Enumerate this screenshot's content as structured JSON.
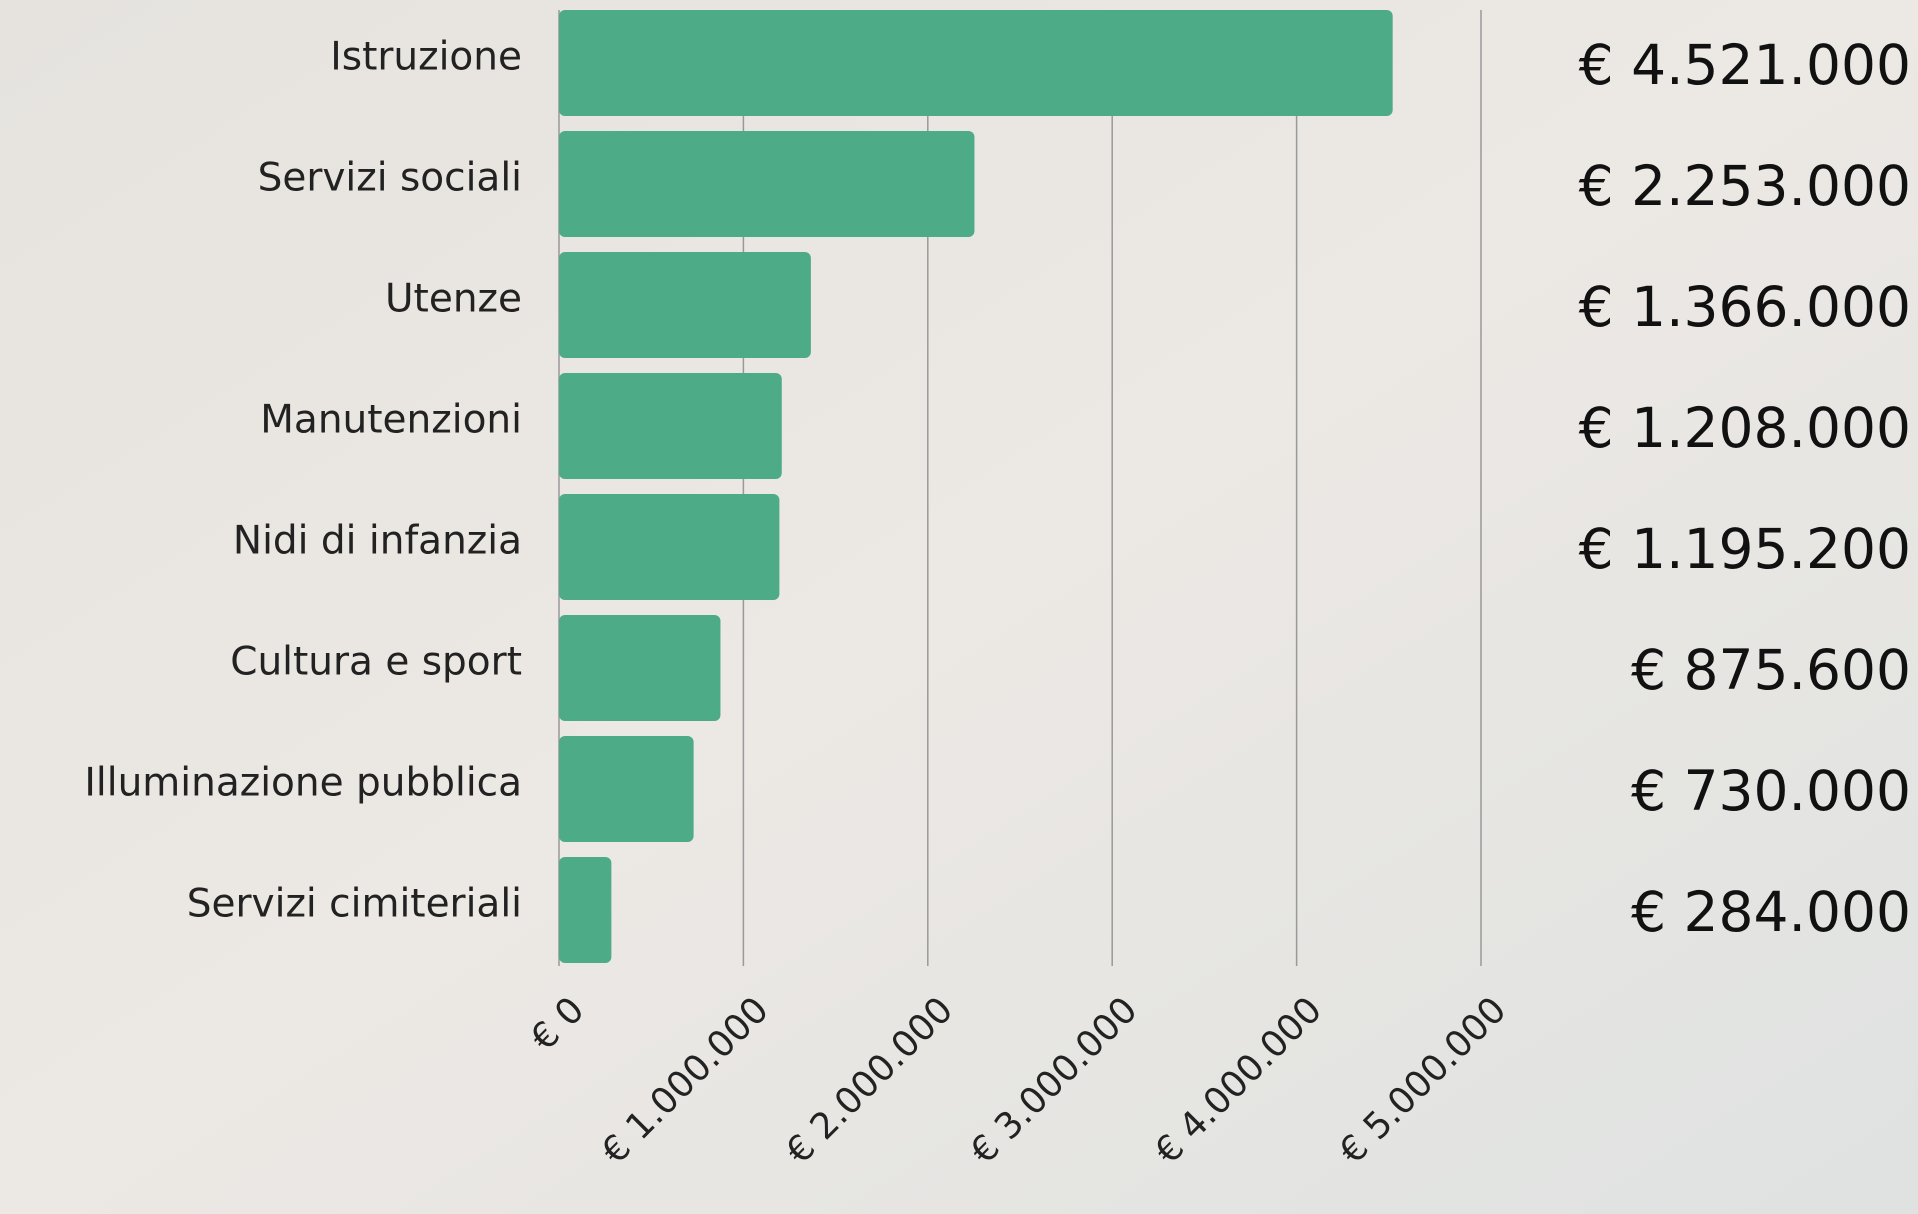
{
  "chart_data": {
    "type": "bar",
    "orientation": "horizontal",
    "categories": [
      "Istruzione",
      "Servizi sociali",
      "Utenze",
      "Manutenzioni",
      "Nidi di infanzia",
      "Cultura e sport",
      "Illuminazione pubblica",
      "Servizi cimiteriali"
    ],
    "values": [
      4521000,
      2253000,
      1366000,
      1208000,
      1195200,
      875600,
      730000,
      284000
    ],
    "value_labels": [
      "€ 4.521.000",
      "€ 2.253.000",
      "€ 1.366.000",
      "€ 1.208.000",
      "€ 1.195.200",
      "€ 875.600",
      "€ 730.000",
      "€ 284.000"
    ],
    "color": "#4dab88",
    "xlim": [
      0,
      5000000
    ],
    "xticks": [
      {
        "value": 0,
        "label": "€ 0"
      },
      {
        "value": 1000000,
        "label": "€ 1.000.000"
      },
      {
        "value": 2000000,
        "label": "€ 2.000.000"
      },
      {
        "value": 3000000,
        "label": "€ 3.000.000"
      },
      {
        "value": 4000000,
        "label": "€ 4.000.000"
      },
      {
        "value": 5000000,
        "label": "€ 5.000.000"
      }
    ],
    "grid": true
  }
}
